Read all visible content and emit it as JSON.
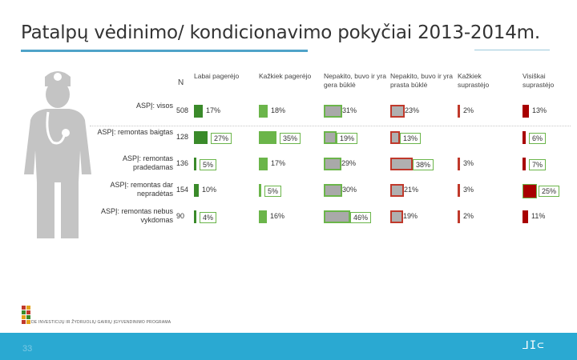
{
  "slide": {
    "title": "Patalpų vėdinimo/ kondicionavimo pokyčiai 2013-2014m.",
    "page_number": "33",
    "logo_caption": "DE INVESTICIJŲ IR ŽYDRUOLIŲ GAIRIŲ ĮGYVENDINIMO PROGRAMA",
    "footer_mark": "⅃I⊂"
  },
  "chart_data": {
    "type": "table",
    "n_header": "N",
    "columns": [
      {
        "label": "Labai pagerėjo",
        "color": "#3a8a2a"
      },
      {
        "label": "Kažkiek pagerėjo",
        "color": "#6bb54a"
      },
      {
        "label": "Nepakito, buvo ir yra gera būklė",
        "color": "#a9a9a9"
      },
      {
        "label": "Nepakito, buvo ir yra prasta būklė",
        "color": "#b0b0b0"
      },
      {
        "label": "Kažkiek suprastėjo",
        "color": "#c0392b"
      },
      {
        "label": "Visiškai suprastėjo",
        "color": "#a80000"
      }
    ],
    "rows": [
      {
        "label": "ASPĮ: visos",
        "n": "508",
        "values": [
          17,
          18,
          31,
          23,
          2,
          13
        ],
        "labels": [
          "17%",
          "18%",
          "31%",
          "23%",
          "2%",
          "13%"
        ]
      },
      {
        "label": "ASPĮ: remontas baigtas",
        "n": "128",
        "values": [
          27,
          35,
          19,
          13,
          0,
          6
        ],
        "labels": [
          "27%",
          "35%",
          "19%",
          "13%",
          "",
          "6%"
        ]
      },
      {
        "label": "ASPĮ: remontas pradedamas",
        "n": "136",
        "values": [
          5,
          17,
          29,
          38,
          3,
          7
        ],
        "labels": [
          "5%",
          "17%",
          "29%",
          "38%",
          "3%",
          "7%"
        ]
      },
      {
        "label": "ASPĮ: remontas dar nepradėtas",
        "n": "154",
        "values": [
          10,
          5,
          30,
          21,
          3,
          25
        ],
        "labels": [
          "10%",
          "5%",
          "30%",
          "21%",
          "3%",
          "25%"
        ]
      },
      {
        "label": "ASPĮ: remontas nebus vykdomas",
        "n": "90",
        "values": [
          4,
          16,
          46,
          19,
          2,
          11
        ],
        "labels": [
          "4%",
          "16%",
          "46%",
          "19%",
          "2%",
          "11%"
        ]
      }
    ]
  }
}
